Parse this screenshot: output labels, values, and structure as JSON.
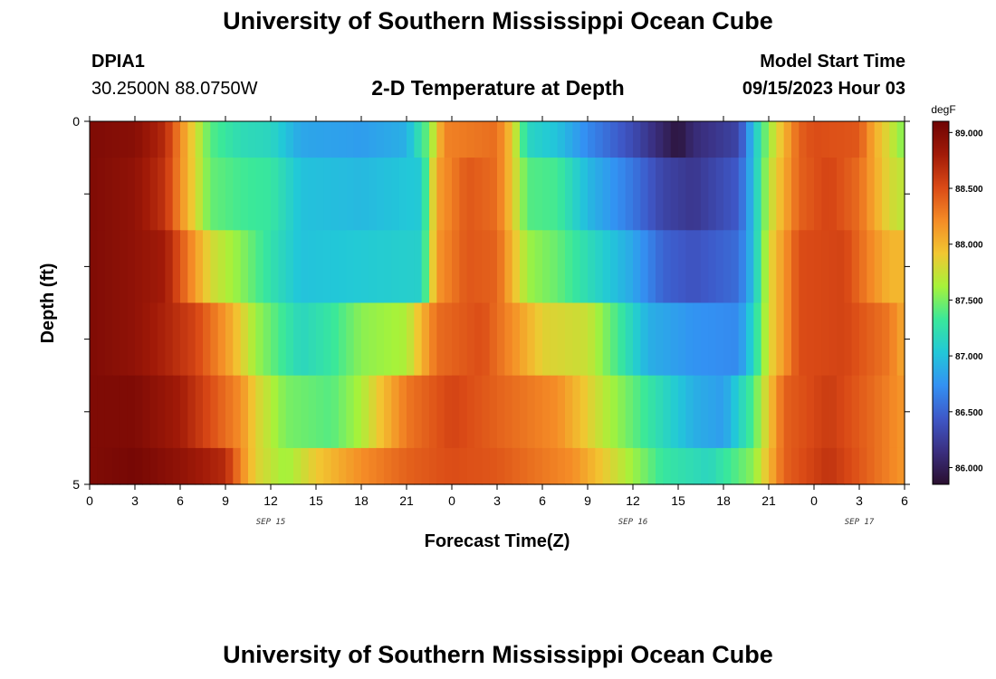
{
  "header": {
    "title": "University of Southern Mississippi Ocean Cube",
    "station": "DPIA1",
    "location": "30.2500N  88.0750W",
    "subtitle": "2-D Temperature at Depth",
    "model_start_label": "Model Start Time",
    "model_start_value": "09/15/2023 Hour 03"
  },
  "footer": {
    "title": "University of Southern Mississippi Ocean Cube"
  },
  "chart_data": {
    "type": "heatmap",
    "xlabel": "Forecast Time(Z)",
    "ylabel": "Depth (ft)",
    "x_tick_labels": [
      "0",
      "3",
      "6",
      "9",
      "12",
      "15",
      "18",
      "21",
      "0",
      "3",
      "6",
      "9",
      "12",
      "15",
      "18",
      "21",
      "0",
      "3",
      "6"
    ],
    "x_range_hours": [
      0,
      54
    ],
    "date_labels": [
      {
        "label": "SEP 15",
        "hour": 12
      },
      {
        "label": "SEP 16",
        "hour": 36
      },
      {
        "label": "SEP 17",
        "hour": 51
      }
    ],
    "y_tick_labels": [
      "0",
      "5"
    ],
    "y_range_ft": [
      0,
      5
    ],
    "depth_rows_ft": [
      0,
      1,
      2,
      3,
      4,
      5
    ],
    "colorbar": {
      "unit": "degF",
      "min": 85.85,
      "max": 89.1,
      "tick_labels": [
        "86.000",
        "86.500",
        "87.000",
        "87.500",
        "88.000",
        "88.500",
        "89.000"
      ],
      "colors": [
        "#2a0f2e",
        "#3a2f80",
        "#3e58c8",
        "#3391f3",
        "#22c8d8",
        "#3ae89a",
        "#a6f23a",
        "#f2c631",
        "#f48b26",
        "#da4a16",
        "#a11a08",
        "#6e0404"
      ]
    },
    "time_step_hours": 0.5,
    "temperature_keyframes_degF": [
      {
        "depth": 0,
        "points": [
          [
            0,
            89.0
          ],
          [
            3,
            88.95
          ],
          [
            5,
            88.7
          ],
          [
            6.5,
            88.0
          ],
          [
            8,
            87.4
          ],
          [
            10,
            87.2
          ],
          [
            12,
            87.15
          ],
          [
            14,
            86.85
          ],
          [
            18,
            86.8
          ],
          [
            21,
            86.9
          ],
          [
            22.5,
            87.5
          ],
          [
            23.5,
            88.25
          ],
          [
            27,
            88.35
          ],
          [
            28,
            87.9
          ],
          [
            29,
            87.15
          ],
          [
            31,
            87.0
          ],
          [
            33,
            86.7
          ],
          [
            36,
            86.35
          ],
          [
            38,
            86.05
          ],
          [
            39,
            85.9
          ],
          [
            40,
            86.1
          ],
          [
            43,
            86.3
          ],
          [
            44,
            87.0
          ],
          [
            45,
            87.6
          ],
          [
            46,
            88.0
          ],
          [
            47,
            88.4
          ],
          [
            48,
            88.5
          ],
          [
            51,
            88.45
          ],
          [
            52,
            88.05
          ],
          [
            54,
            87.5
          ]
        ]
      },
      {
        "depth": 1,
        "points": [
          [
            0,
            89.0
          ],
          [
            3,
            88.9
          ],
          [
            5,
            88.65
          ],
          [
            6.5,
            88.0
          ],
          [
            8,
            87.45
          ],
          [
            10,
            87.35
          ],
          [
            12,
            87.3
          ],
          [
            14,
            87.0
          ],
          [
            18,
            86.95
          ],
          [
            22,
            87.05
          ],
          [
            23,
            88.1
          ],
          [
            25,
            88.45
          ],
          [
            27,
            88.35
          ],
          [
            28,
            87.9
          ],
          [
            29,
            87.4
          ],
          [
            31,
            87.35
          ],
          [
            33,
            86.95
          ],
          [
            36,
            86.6
          ],
          [
            38,
            86.3
          ],
          [
            40,
            86.2
          ],
          [
            43,
            86.45
          ],
          [
            44,
            87.0
          ],
          [
            45,
            87.7
          ],
          [
            47,
            88.4
          ],
          [
            49,
            88.55
          ],
          [
            51,
            88.35
          ],
          [
            53,
            87.8
          ],
          [
            54,
            87.7
          ]
        ]
      },
      {
        "depth": 2,
        "points": [
          [
            0,
            89.0
          ],
          [
            3,
            88.9
          ],
          [
            5,
            88.8
          ],
          [
            6.5,
            88.3
          ],
          [
            8,
            87.8
          ],
          [
            10,
            87.55
          ],
          [
            12,
            87.25
          ],
          [
            14,
            87.0
          ],
          [
            18,
            87.05
          ],
          [
            22,
            87.1
          ],
          [
            23,
            88.15
          ],
          [
            25,
            88.45
          ],
          [
            27,
            88.4
          ],
          [
            28,
            88.0
          ],
          [
            29,
            87.6
          ],
          [
            31,
            87.45
          ],
          [
            33,
            87.2
          ],
          [
            36,
            86.85
          ],
          [
            38,
            86.5
          ],
          [
            40,
            86.4
          ],
          [
            43,
            86.55
          ],
          [
            44,
            87.0
          ],
          [
            45,
            87.8
          ],
          [
            47,
            88.5
          ],
          [
            50,
            88.55
          ],
          [
            53,
            88.0
          ],
          [
            54,
            88.0
          ]
        ]
      },
      {
        "depth": 3,
        "points": [
          [
            0,
            89.0
          ],
          [
            3,
            88.9
          ],
          [
            5,
            88.75
          ],
          [
            7,
            88.55
          ],
          [
            9,
            88.15
          ],
          [
            11,
            87.6
          ],
          [
            14,
            87.15
          ],
          [
            16,
            87.3
          ],
          [
            18,
            87.55
          ],
          [
            21,
            87.65
          ],
          [
            23,
            88.35
          ],
          [
            26,
            88.5
          ],
          [
            28,
            88.2
          ],
          [
            30,
            87.85
          ],
          [
            33,
            87.75
          ],
          [
            35,
            87.35
          ],
          [
            37,
            86.9
          ],
          [
            40,
            86.75
          ],
          [
            43,
            86.7
          ],
          [
            44,
            87.15
          ],
          [
            45,
            87.8
          ],
          [
            47,
            88.5
          ],
          [
            50,
            88.55
          ],
          [
            53,
            88.3
          ],
          [
            54,
            88.05
          ]
        ]
      },
      {
        "depth": 4,
        "points": [
          [
            0,
            89.0
          ],
          [
            3,
            89.0
          ],
          [
            6,
            88.8
          ],
          [
            8,
            88.5
          ],
          [
            10,
            88.2
          ],
          [
            11,
            87.85
          ],
          [
            13,
            87.5
          ],
          [
            16,
            87.4
          ],
          [
            18,
            87.65
          ],
          [
            21,
            88.3
          ],
          [
            24,
            88.55
          ],
          [
            27,
            88.4
          ],
          [
            31,
            88.2
          ],
          [
            34,
            87.7
          ],
          [
            37,
            87.3
          ],
          [
            40,
            86.9
          ],
          [
            42,
            86.8
          ],
          [
            44,
            87.4
          ],
          [
            46,
            88.4
          ],
          [
            49,
            88.6
          ],
          [
            52,
            88.35
          ],
          [
            54,
            88.15
          ]
        ]
      },
      {
        "depth": 5,
        "points": [
          [
            0,
            89.0
          ],
          [
            3,
            89.05
          ],
          [
            6,
            88.9
          ],
          [
            9,
            88.7
          ],
          [
            10,
            88.25
          ],
          [
            11,
            87.85
          ],
          [
            13,
            87.6
          ],
          [
            15,
            87.9
          ],
          [
            18,
            88.2
          ],
          [
            21,
            88.4
          ],
          [
            24,
            88.5
          ],
          [
            27,
            88.45
          ],
          [
            32,
            88.2
          ],
          [
            35,
            87.75
          ],
          [
            38,
            87.3
          ],
          [
            41,
            87.15
          ],
          [
            44,
            87.55
          ],
          [
            46,
            88.4
          ],
          [
            49,
            88.65
          ],
          [
            52,
            88.35
          ],
          [
            54,
            88.15
          ]
        ]
      }
    ]
  }
}
